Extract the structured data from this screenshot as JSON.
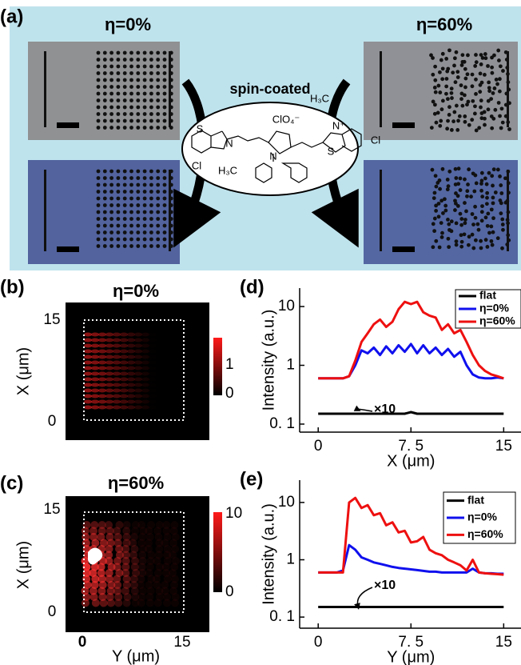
{
  "panel_a": {
    "label": "(a)",
    "left_title": "η=0%",
    "right_title": "η=60%",
    "process": "spin-coated",
    "molecule_labels": [
      "S",
      "N",
      "Cl",
      "H₃C",
      "ClO₄⁻",
      "N",
      "H₃C",
      "N⁺",
      "S",
      "Cl"
    ]
  },
  "panel_b": {
    "label": "(b)",
    "title": "η=0%",
    "yticks": [
      15,
      0
    ],
    "ylabel": "X (μm)",
    "colorbar_ticks": [
      1,
      0
    ]
  },
  "panel_c": {
    "label": "(c)",
    "title": "η=60%",
    "yticks": [
      15,
      0
    ],
    "ylabel": "X (μm)",
    "colorbar_ticks": [
      10,
      0
    ],
    "xticks": [
      0,
      15
    ],
    "xlabel": "Y (μm)"
  },
  "chart_data": [
    {
      "type": "line",
      "panel_label": "(d)",
      "xlabel": "X (μm)",
      "ylabel": "Intensity (a.u.)",
      "log_y": true,
      "legend": "upper right",
      "annotation": "×10",
      "xlim": [
        -1.5,
        16.4
      ],
      "ylim": [
        0.073,
        20.6
      ],
      "xticks": [
        0,
        {
          "value": 7.5,
          "label": "7. 5"
        },
        15
      ],
      "yticks": [
        {
          "value": 0.1,
          "label": "0. 1"
        },
        1,
        10
      ],
      "x": [
        0,
        0.5,
        1,
        1.5,
        2,
        2.5,
        3,
        3.5,
        4,
        4.5,
        5,
        5.5,
        6,
        6.5,
        7,
        7.5,
        8,
        8.5,
        9,
        9.5,
        10,
        10.5,
        11,
        11.5,
        12,
        12.5,
        13,
        13.5,
        14,
        14.5,
        15
      ],
      "series": [
        {
          "name": "flat",
          "color": "#000000",
          "values": [
            0.15,
            0.15,
            0.15,
            0.15,
            0.15,
            0.15,
            0.15,
            0.15,
            0.15,
            0.15,
            0.15,
            0.15,
            0.15,
            0.15,
            0.15,
            0.16,
            0.15,
            0.15,
            0.15,
            0.15,
            0.15,
            0.15,
            0.15,
            0.15,
            0.15,
            0.15,
            0.15,
            0.15,
            0.15,
            0.15,
            0.15
          ]
        },
        {
          "name": "η=0%",
          "color": "#1010ee",
          "values": [
            0.6,
            0.6,
            0.6,
            0.6,
            0.6,
            0.65,
            1.0,
            1.8,
            1.6,
            2.0,
            1.5,
            2.1,
            1.6,
            2.2,
            1.7,
            2.3,
            1.6,
            2.2,
            1.6,
            2.0,
            1.5,
            1.9,
            1.4,
            1.7,
            1.0,
            0.7,
            0.62,
            0.6,
            0.6,
            0.62,
            0.6
          ]
        },
        {
          "name": "η=60%",
          "color": "#ee1010",
          "values": [
            0.6,
            0.6,
            0.6,
            0.6,
            0.6,
            0.65,
            1.2,
            2.5,
            3.5,
            5,
            6,
            4.5,
            5.5,
            9,
            12,
            11,
            12,
            8,
            7,
            6.5,
            4,
            5,
            3.5,
            4,
            2.5,
            1.5,
            1.0,
            0.8,
            0.7,
            0.65,
            0.6
          ]
        }
      ]
    },
    {
      "type": "line",
      "panel_label": "(e)",
      "xlabel": "Y (μm)",
      "ylabel": "Intensity (a.u.)",
      "log_y": true,
      "legend": "upper right",
      "annotation": "×10",
      "xlim": [
        -1.5,
        16.4
      ],
      "ylim": [
        0.064,
        24.5
      ],
      "xticks": [
        0,
        {
          "value": 7.5,
          "label": "7. 5"
        },
        15
      ],
      "yticks": [
        {
          "value": 0.1,
          "label": "0. 1"
        },
        1,
        10
      ],
      "x": [
        0,
        0.5,
        1,
        1.5,
        2,
        2.5,
        3,
        3.5,
        4,
        4.5,
        5,
        5.5,
        6,
        6.5,
        7,
        7.5,
        8,
        8.5,
        9,
        9.5,
        10,
        10.5,
        11,
        11.5,
        12,
        12.5,
        13,
        13.5,
        14,
        14.5,
        15
      ],
      "series": [
        {
          "name": "flat",
          "color": "#000000",
          "values": [
            0.15,
            0.15,
            0.15,
            0.15,
            0.15,
            0.15,
            0.15,
            0.15,
            0.15,
            0.15,
            0.15,
            0.15,
            0.15,
            0.15,
            0.15,
            0.15,
            0.15,
            0.15,
            0.15,
            0.15,
            0.15,
            0.15,
            0.15,
            0.15,
            0.15,
            0.15,
            0.15,
            0.15,
            0.15,
            0.15,
            0.15
          ]
        },
        {
          "name": "η=0%",
          "color": "#1010ee",
          "values": [
            0.6,
            0.6,
            0.6,
            0.6,
            0.65,
            1.8,
            1.5,
            1.1,
            1.0,
            0.9,
            0.85,
            0.8,
            0.75,
            0.72,
            0.7,
            0.68,
            0.66,
            0.64,
            0.62,
            0.62,
            0.6,
            0.6,
            0.6,
            0.6,
            0.6,
            0.7,
            0.6,
            0.58,
            0.58,
            0.57,
            0.57
          ]
        },
        {
          "name": "η=60%",
          "color": "#ee1010",
          "values": [
            0.6,
            0.6,
            0.6,
            0.6,
            0.6,
            10,
            12,
            8,
            9,
            6,
            6.5,
            4,
            4.5,
            3,
            3.2,
            2,
            2.1,
            2.5,
            1.5,
            1.3,
            1.2,
            1.0,
            0.9,
            0.8,
            0.65,
            1.0,
            0.6,
            0.58,
            0.57,
            0.56,
            0.55
          ]
        }
      ]
    }
  ]
}
